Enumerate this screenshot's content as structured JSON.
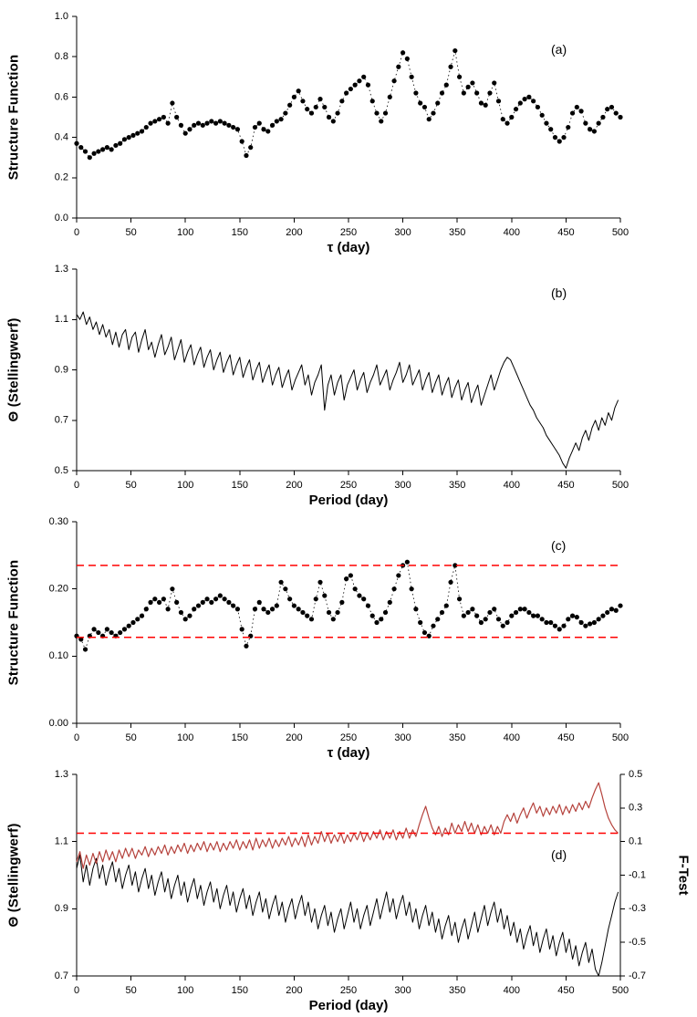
{
  "page": {
    "background": "#ffffff"
  },
  "colors": {
    "series_black": "#000000",
    "series_red": "#b5423c",
    "ref_dashed_red": "#ff0000"
  },
  "chart_data": [
    {
      "id": "a",
      "type": "scatter",
      "panel_label": "(a)",
      "xlabel": "τ (day)",
      "ylabel": "Structure Function",
      "xlim": [
        0,
        500
      ],
      "ylim": [
        0,
        1.0
      ],
      "grid": false,
      "legend": false,
      "xticks": [
        0,
        50,
        100,
        150,
        200,
        250,
        300,
        350,
        400,
        450,
        500
      ],
      "xtick_labels": [
        "0",
        "50",
        "100",
        "150",
        "200",
        "250",
        "300",
        "350",
        "400",
        "450",
        "500"
      ],
      "yticks": [
        0,
        0.2,
        0.4,
        0.6,
        0.8,
        1.0
      ],
      "ytick_labels": [
        "0.0",
        "0.2",
        "0.4",
        "0.6",
        "0.8",
        "1.0"
      ],
      "series": [
        {
          "name": "structure function",
          "color": "#000000",
          "marker": "circle",
          "marker_r": 2.6,
          "line": "dotted",
          "x_start": 0,
          "x_step": 4,
          "values": [
            0.37,
            0.35,
            0.33,
            0.3,
            0.32,
            0.33,
            0.34,
            0.35,
            0.34,
            0.36,
            0.37,
            0.39,
            0.4,
            0.41,
            0.42,
            0.43,
            0.45,
            0.47,
            0.48,
            0.49,
            0.5,
            0.47,
            0.57,
            0.5,
            0.46,
            0.42,
            0.44,
            0.46,
            0.47,
            0.46,
            0.47,
            0.48,
            0.47,
            0.48,
            0.47,
            0.46,
            0.45,
            0.44,
            0.38,
            0.31,
            0.35,
            0.45,
            0.47,
            0.44,
            0.43,
            0.46,
            0.48,
            0.49,
            0.52,
            0.56,
            0.6,
            0.63,
            0.58,
            0.54,
            0.52,
            0.55,
            0.59,
            0.55,
            0.5,
            0.48,
            0.52,
            0.58,
            0.62,
            0.64,
            0.66,
            0.68,
            0.7,
            0.66,
            0.58,
            0.52,
            0.48,
            0.52,
            0.6,
            0.68,
            0.75,
            0.82,
            0.79,
            0.7,
            0.62,
            0.57,
            0.55,
            0.49,
            0.52,
            0.57,
            0.62,
            0.66,
            0.75,
            0.83,
            0.7,
            0.62,
            0.65,
            0.67,
            0.62,
            0.57,
            0.56,
            0.62,
            0.67,
            0.58,
            0.49,
            0.47,
            0.5,
            0.54,
            0.57,
            0.59,
            0.6,
            0.58,
            0.55,
            0.51,
            0.47,
            0.44,
            0.4,
            0.38,
            0.4,
            0.45,
            0.52,
            0.55,
            0.53,
            0.47,
            0.44,
            0.43,
            0.47,
            0.5,
            0.54,
            0.55,
            0.52,
            0.5
          ]
        }
      ]
    },
    {
      "id": "b",
      "type": "line",
      "panel_label": "(b)",
      "xlabel": "Period (day)",
      "ylabel": "Θ (Stellingwerf)",
      "xlim": [
        0,
        500
      ],
      "ylim": [
        0.5,
        1.3
      ],
      "grid": false,
      "legend": false,
      "xticks": [
        0,
        50,
        100,
        150,
        200,
        250,
        300,
        350,
        400,
        450,
        500
      ],
      "xtick_labels": [
        "0",
        "50",
        "100",
        "150",
        "200",
        "250",
        "300",
        "350",
        "400",
        "450",
        "500"
      ],
      "yticks": [
        0.5,
        0.7,
        0.9,
        1.1,
        1.3
      ],
      "ytick_labels": [
        "0.5",
        "0.7",
        "0.9",
        "1.1",
        "1.3"
      ],
      "series": [
        {
          "name": "theta statistic",
          "color": "#000000",
          "line": "solid",
          "width": 1,
          "x_start": 0,
          "x_step": 3,
          "values": [
            1.12,
            1.1,
            1.13,
            1.08,
            1.11,
            1.06,
            1.09,
            1.04,
            1.08,
            1.03,
            1.06,
            1.0,
            1.05,
            0.99,
            1.04,
            1.06,
            0.98,
            1.03,
            1.05,
            0.97,
            1.02,
            1.06,
            0.98,
            1.01,
            0.95,
            1.0,
            1.04,
            0.96,
            0.99,
            1.03,
            0.94,
            0.98,
            1.02,
            0.93,
            0.97,
            1.0,
            0.92,
            0.96,
            0.99,
            0.91,
            0.95,
            0.98,
            0.9,
            0.94,
            0.97,
            0.89,
            0.93,
            0.96,
            0.88,
            0.92,
            0.95,
            0.87,
            0.91,
            0.94,
            0.86,
            0.9,
            0.93,
            0.85,
            0.89,
            0.92,
            0.84,
            0.88,
            0.91,
            0.83,
            0.87,
            0.9,
            0.82,
            0.86,
            0.89,
            0.92,
            0.84,
            0.88,
            0.8,
            0.85,
            0.88,
            0.92,
            0.74,
            0.84,
            0.88,
            0.8,
            0.85,
            0.88,
            0.78,
            0.84,
            0.87,
            0.9,
            0.82,
            0.86,
            0.89,
            0.81,
            0.85,
            0.88,
            0.92,
            0.84,
            0.87,
            0.9,
            0.82,
            0.86,
            0.89,
            0.93,
            0.85,
            0.88,
            0.92,
            0.84,
            0.87,
            0.9,
            0.82,
            0.86,
            0.89,
            0.81,
            0.85,
            0.88,
            0.8,
            0.84,
            0.87,
            0.79,
            0.83,
            0.86,
            0.78,
            0.82,
            0.85,
            0.77,
            0.81,
            0.84,
            0.76,
            0.8,
            0.84,
            0.88,
            0.82,
            0.86,
            0.9,
            0.93,
            0.95,
            0.94,
            0.91,
            0.88,
            0.85,
            0.82,
            0.79,
            0.76,
            0.74,
            0.71,
            0.69,
            0.67,
            0.64,
            0.62,
            0.6,
            0.58,
            0.56,
            0.53,
            0.51,
            0.55,
            0.58,
            0.61,
            0.58,
            0.63,
            0.66,
            0.62,
            0.67,
            0.7,
            0.66,
            0.71,
            0.68,
            0.73,
            0.7,
            0.75,
            0.78
          ]
        }
      ]
    },
    {
      "id": "c",
      "type": "scatter",
      "panel_label": "(c)",
      "xlabel": "τ (day)",
      "ylabel": "Structure Function",
      "xlim": [
        0,
        500
      ],
      "ylim": [
        0,
        0.3
      ],
      "grid": false,
      "legend": false,
      "xticks": [
        0,
        50,
        100,
        150,
        200,
        250,
        300,
        350,
        400,
        450,
        500
      ],
      "xtick_labels": [
        "0",
        "50",
        "100",
        "150",
        "200",
        "250",
        "300",
        "350",
        "400",
        "450",
        "500"
      ],
      "yticks": [
        0,
        0.1,
        0.2,
        0.3
      ],
      "ytick_labels": [
        "0.00",
        "0.10",
        "0.20",
        "0.30"
      ],
      "ref_lines": [
        {
          "y": 0.235,
          "color": "#ff0000",
          "style": "dashed"
        },
        {
          "y": 0.128,
          "color": "#ff0000",
          "style": "dashed"
        }
      ],
      "series": [
        {
          "name": "structure function",
          "color": "#000000",
          "marker": "circle",
          "marker_r": 2.6,
          "line": "dotted",
          "x_start": 0,
          "x_step": 4,
          "values": [
            0.13,
            0.125,
            0.11,
            0.13,
            0.14,
            0.135,
            0.13,
            0.14,
            0.135,
            0.13,
            0.135,
            0.14,
            0.145,
            0.15,
            0.155,
            0.16,
            0.17,
            0.18,
            0.185,
            0.18,
            0.185,
            0.17,
            0.2,
            0.18,
            0.165,
            0.155,
            0.16,
            0.17,
            0.175,
            0.18,
            0.185,
            0.18,
            0.185,
            0.19,
            0.185,
            0.18,
            0.175,
            0.17,
            0.14,
            0.115,
            0.13,
            0.17,
            0.18,
            0.17,
            0.165,
            0.17,
            0.175,
            0.21,
            0.2,
            0.185,
            0.175,
            0.17,
            0.165,
            0.16,
            0.155,
            0.185,
            0.21,
            0.19,
            0.165,
            0.155,
            0.165,
            0.18,
            0.215,
            0.22,
            0.2,
            0.19,
            0.185,
            0.175,
            0.16,
            0.15,
            0.155,
            0.165,
            0.18,
            0.2,
            0.22,
            0.235,
            0.24,
            0.2,
            0.17,
            0.15,
            0.135,
            0.13,
            0.145,
            0.155,
            0.165,
            0.175,
            0.21,
            0.235,
            0.185,
            0.16,
            0.165,
            0.17,
            0.16,
            0.15,
            0.155,
            0.165,
            0.17,
            0.155,
            0.145,
            0.15,
            0.16,
            0.165,
            0.17,
            0.17,
            0.165,
            0.16,
            0.16,
            0.155,
            0.15,
            0.15,
            0.145,
            0.14,
            0.145,
            0.155,
            0.16,
            0.158,
            0.15,
            0.145,
            0.148,
            0.15,
            0.155,
            0.16,
            0.165,
            0.17,
            0.168,
            0.175
          ]
        }
      ]
    },
    {
      "id": "d",
      "type": "line",
      "panel_label": "(d)",
      "xlabel": "Period (day)",
      "ylabel": "Θ (Stellingwerf)",
      "y2label": "F-Test",
      "xlim": [
        0,
        500
      ],
      "ylim": [
        0.7,
        1.3
      ],
      "y2lim": [
        -0.7,
        0.5
      ],
      "grid": false,
      "legend": false,
      "xticks": [
        0,
        50,
        100,
        150,
        200,
        250,
        300,
        350,
        400,
        450,
        500
      ],
      "xtick_labels": [
        "0",
        "50",
        "100",
        "150",
        "200",
        "250",
        "300",
        "350",
        "400",
        "450",
        "500"
      ],
      "yticks": [
        0.7,
        0.9,
        1.1,
        1.3
      ],
      "ytick_labels": [
        "0.7",
        "0.9",
        "1.1",
        "1.3"
      ],
      "y2ticks": [
        -0.7,
        -0.5,
        -0.3,
        -0.1,
        0.1,
        0.3,
        0.5
      ],
      "y2tick_labels": [
        "-0.7",
        "-0.5",
        "-0.3",
        "-0.1",
        "0.1",
        "0.3",
        "0.5"
      ],
      "ref_lines": [
        {
          "y": 0.15,
          "axis": "right",
          "color": "#ff0000",
          "style": "dashed"
        }
      ],
      "series": [
        {
          "name": "theta statistic",
          "color": "#000000",
          "line": "solid",
          "width": 1,
          "x_start": 0,
          "x_step": 3,
          "values": [
            1.02,
            1.06,
            0.98,
            1.03,
            0.97,
            1.02,
            1.05,
            0.99,
            1.03,
            0.97,
            1.01,
            1.04,
            0.98,
            1.02,
            0.96,
            1.0,
            1.03,
            0.97,
            1.01,
            0.95,
            0.99,
            1.02,
            0.96,
            1.0,
            0.94,
            0.98,
            1.01,
            0.95,
            0.99,
            0.93,
            0.97,
            1.0,
            0.94,
            0.98,
            0.92,
            0.96,
            0.99,
            0.93,
            0.97,
            0.91,
            0.95,
            0.98,
            0.92,
            0.96,
            0.9,
            0.94,
            0.97,
            0.91,
            0.95,
            0.89,
            0.93,
            0.96,
            0.9,
            0.94,
            0.88,
            0.92,
            0.95,
            0.89,
            0.93,
            0.87,
            0.91,
            0.94,
            0.88,
            0.92,
            0.86,
            0.9,
            0.93,
            0.87,
            0.91,
            0.94,
            0.88,
            0.92,
            0.86,
            0.9,
            0.84,
            0.88,
            0.91,
            0.85,
            0.89,
            0.83,
            0.87,
            0.9,
            0.84,
            0.88,
            0.92,
            0.86,
            0.9,
            0.84,
            0.88,
            0.91,
            0.85,
            0.89,
            0.93,
            0.87,
            0.91,
            0.95,
            0.89,
            0.93,
            0.87,
            0.91,
            0.94,
            0.88,
            0.92,
            0.86,
            0.9,
            0.84,
            0.88,
            0.91,
            0.85,
            0.89,
            0.83,
            0.87,
            0.81,
            0.85,
            0.88,
            0.82,
            0.86,
            0.8,
            0.84,
            0.87,
            0.81,
            0.85,
            0.89,
            0.83,
            0.87,
            0.91,
            0.85,
            0.89,
            0.92,
            0.86,
            0.9,
            0.84,
            0.88,
            0.82,
            0.86,
            0.8,
            0.84,
            0.78,
            0.82,
            0.85,
            0.79,
            0.83,
            0.77,
            0.81,
            0.84,
            0.78,
            0.82,
            0.76,
            0.8,
            0.83,
            0.77,
            0.81,
            0.75,
            0.79,
            0.73,
            0.77,
            0.8,
            0.74,
            0.78,
            0.72,
            0.7,
            0.74,
            0.79,
            0.84,
            0.88,
            0.92,
            0.95
          ]
        },
        {
          "name": "F-test",
          "axis": "right",
          "color": "#b5423c",
          "line": "solid",
          "width": 1.2,
          "x_start": 0,
          "x_step": 3,
          "values": [
            -0.02,
            0.04,
            -0.06,
            0.02,
            -0.04,
            0.03,
            -0.03,
            0.04,
            -0.02,
            0.05,
            -0.01,
            0.04,
            -0.02,
            0.05,
            0.0,
            0.06,
            0.01,
            0.06,
            0.0,
            0.05,
            0.02,
            0.07,
            0.01,
            0.06,
            0.02,
            0.07,
            0.03,
            0.08,
            0.02,
            0.07,
            0.03,
            0.08,
            0.04,
            0.09,
            0.03,
            0.08,
            0.04,
            0.09,
            0.05,
            0.1,
            0.04,
            0.09,
            0.05,
            0.1,
            0.04,
            0.09,
            0.05,
            0.1,
            0.06,
            0.11,
            0.05,
            0.1,
            0.06,
            0.11,
            0.05,
            0.12,
            0.06,
            0.11,
            0.07,
            0.12,
            0.06,
            0.11,
            0.07,
            0.12,
            0.08,
            0.13,
            0.07,
            0.12,
            0.08,
            0.13,
            0.07,
            0.14,
            0.08,
            0.13,
            0.09,
            0.16,
            0.1,
            0.15,
            0.09,
            0.14,
            0.1,
            0.15,
            0.09,
            0.14,
            0.1,
            0.15,
            0.11,
            0.16,
            0.1,
            0.15,
            0.11,
            0.16,
            0.12,
            0.17,
            0.11,
            0.16,
            0.12,
            0.17,
            0.11,
            0.16,
            0.12,
            0.18,
            0.12,
            0.17,
            0.13,
            0.2,
            0.26,
            0.31,
            0.24,
            0.18,
            0.14,
            0.19,
            0.13,
            0.18,
            0.14,
            0.21,
            0.15,
            0.2,
            0.16,
            0.22,
            0.16,
            0.21,
            0.15,
            0.2,
            0.14,
            0.19,
            0.15,
            0.2,
            0.14,
            0.19,
            0.15,
            0.22,
            0.26,
            0.22,
            0.27,
            0.21,
            0.26,
            0.3,
            0.24,
            0.29,
            0.33,
            0.27,
            0.31,
            0.25,
            0.3,
            0.26,
            0.31,
            0.27,
            0.32,
            0.26,
            0.31,
            0.27,
            0.32,
            0.28,
            0.33,
            0.29,
            0.34,
            0.3,
            0.36,
            0.41,
            0.45,
            0.38,
            0.3,
            0.24,
            0.2,
            0.17,
            0.15
          ]
        }
      ]
    }
  ]
}
